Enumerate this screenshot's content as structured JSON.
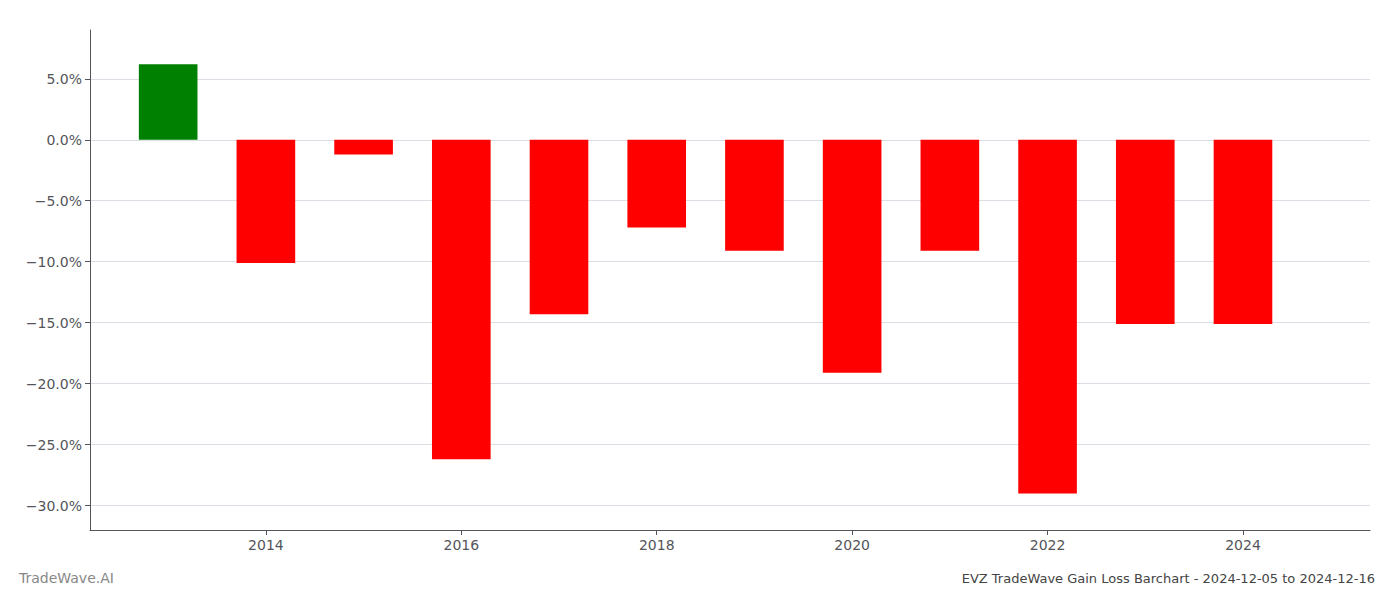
{
  "chart_data": {
    "type": "bar",
    "title": "EVZ TradeWave Gain Loss Barchart - 2024-12-05 to 2024-12-16",
    "annotations": [
      "TradeWave.AI"
    ],
    "x": [
      2013,
      2014,
      2015,
      2016,
      2017,
      2018,
      2019,
      2020,
      2021,
      2022,
      2023,
      2024
    ],
    "values": [
      0.062,
      -0.101,
      -0.012,
      -0.262,
      -0.143,
      -0.072,
      -0.091,
      -0.191,
      -0.091,
      -0.29,
      -0.151,
      -0.151
    ],
    "colors": [
      "#008000",
      "#ff0000",
      "#ff0000",
      "#ff0000",
      "#ff0000",
      "#ff0000",
      "#ff0000",
      "#ff0000",
      "#ff0000",
      "#ff0000",
      "#ff0000",
      "#ff0000"
    ],
    "xlim": [
      2012.2,
      2025.3
    ],
    "xticks": [
      2014,
      2016,
      2018,
      2020,
      2022,
      2024
    ],
    "ylim": [
      -0.32,
      0.09
    ],
    "yticks": [
      {
        "value": -0.3,
        "label": "−30.0%"
      },
      {
        "value": -0.25,
        "label": "−25.0%"
      },
      {
        "value": -0.2,
        "label": "−20.0%"
      },
      {
        "value": -0.15,
        "label": "−15.0%"
      },
      {
        "value": -0.1,
        "label": "−10.0%"
      },
      {
        "value": -0.05,
        "label": "−5.0%"
      },
      {
        "value": 0,
        "label": "0.0%"
      },
      {
        "value": 0.05,
        "label": "5.0%"
      }
    ],
    "grid": true
  }
}
